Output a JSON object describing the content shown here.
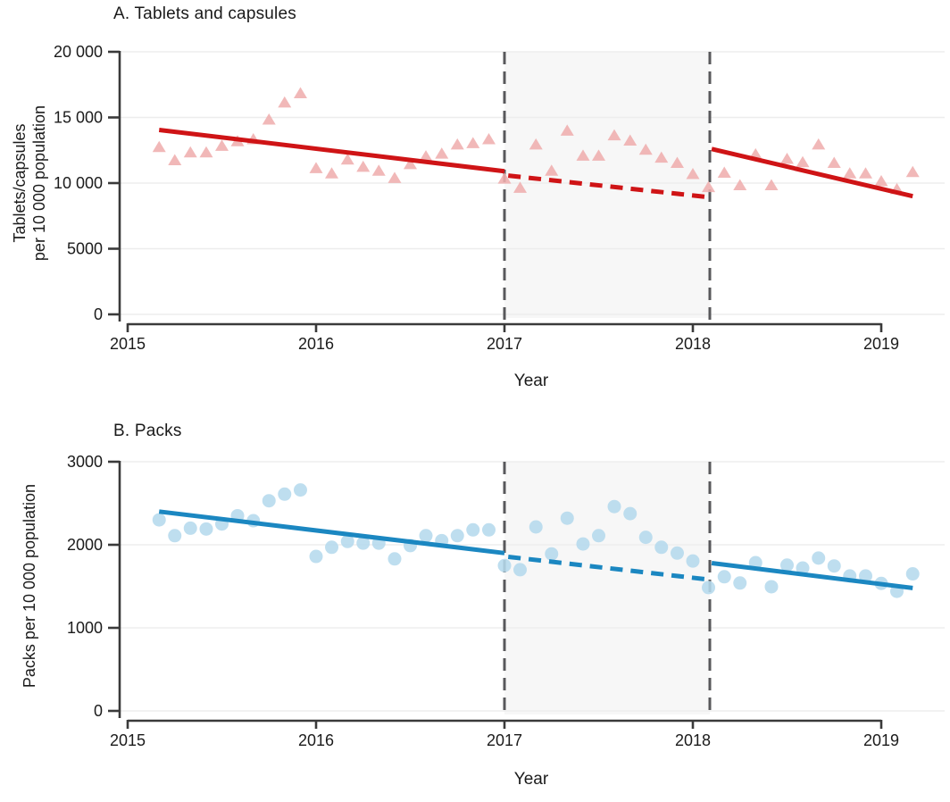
{
  "colors": {
    "red_line": "#cf1416",
    "pink_marker": "#efaeae",
    "blue_line": "#1b87c1",
    "light_blue_marker": "#b5d9ed",
    "interruption_band": "#f7f7f7",
    "dashed_guide": "#58585b",
    "gridline": "#ededed",
    "axis": "#3a3a3a",
    "text": "#1b1b1b"
  },
  "chart_data": [
    {
      "panel": "A",
      "type": "scatter",
      "title": "A. Tablets and capsules",
      "ylabel_lines": [
        "Tablets/capsules",
        "per 10 000 population"
      ],
      "xlabel": "Year",
      "ylim": [
        0,
        20000
      ],
      "yticks": [
        0,
        5000,
        10000,
        15000,
        20000
      ],
      "ytick_labels": [
        "0",
        "5000",
        "10 000",
        "15 000",
        "20 000"
      ],
      "xticks": [
        2015,
        2016,
        2017,
        2018,
        2019
      ],
      "xtick_labels": [
        "2015",
        "2016",
        "2017",
        "2018",
        "2019"
      ],
      "grid": true,
      "legend": "none",
      "marker": "triangle",
      "interruption": {
        "start": 2017.0,
        "end": 2018.09
      },
      "points": {
        "x": [
          2015.167,
          2015.25,
          2015.333,
          2015.417,
          2015.5,
          2015.583,
          2015.667,
          2015.75,
          2015.833,
          2015.917,
          2016.0,
          2016.083,
          2016.167,
          2016.25,
          2016.333,
          2016.417,
          2016.5,
          2016.583,
          2016.667,
          2016.75,
          2016.833,
          2016.917,
          2017.0,
          2017.083,
          2017.167,
          2017.25,
          2017.333,
          2017.417,
          2017.5,
          2017.583,
          2017.667,
          2017.75,
          2017.833,
          2017.917,
          2018.0,
          2018.083,
          2018.167,
          2018.25,
          2018.333,
          2018.417,
          2018.5,
          2018.583,
          2018.667,
          2018.75,
          2018.833,
          2018.917,
          2019.0,
          2019.083,
          2019.167
        ],
        "y": [
          12700,
          11700,
          12300,
          12300,
          12800,
          13150,
          13300,
          14800,
          16100,
          16800,
          11100,
          10700,
          11750,
          11200,
          10900,
          10350,
          11400,
          12000,
          12200,
          12900,
          13000,
          13300,
          10300,
          9600,
          12900,
          10900,
          13950,
          12050,
          12050,
          13600,
          13200,
          12500,
          11900,
          11500,
          10650,
          9650,
          10750,
          9800,
          12150,
          9800,
          11800,
          11550,
          12900,
          11500,
          10700,
          10700,
          10100,
          9500,
          10800
        ]
      },
      "trend_segments": [
        {
          "style": "solid",
          "x1": 2015.167,
          "y1": 14050,
          "x2": 2017.0,
          "y2": 10900
        },
        {
          "style": "dashed",
          "x1": 2017.02,
          "y1": 10570,
          "x2": 2018.07,
          "y2": 8950
        },
        {
          "style": "solid",
          "x1": 2018.1,
          "y1": 12600,
          "x2": 2019.167,
          "y2": 9000
        }
      ]
    },
    {
      "panel": "B",
      "type": "scatter",
      "title": "B. Packs",
      "ylabel_lines": [
        "Packs per 10 000 population"
      ],
      "xlabel": "Year",
      "ylim": [
        0,
        3000
      ],
      "yticks": [
        0,
        1000,
        2000,
        3000
      ],
      "ytick_labels": [
        "0",
        "1000",
        "2000",
        "3000"
      ],
      "xticks": [
        2015,
        2016,
        2017,
        2018,
        2019
      ],
      "xtick_labels": [
        "2015",
        "2016",
        "2017",
        "2018",
        "2019"
      ],
      "grid": true,
      "legend": "none",
      "marker": "circle",
      "interruption": {
        "start": 2017.0,
        "end": 2018.09
      },
      "points": {
        "x": [
          2015.167,
          2015.25,
          2015.333,
          2015.417,
          2015.5,
          2015.583,
          2015.667,
          2015.75,
          2015.833,
          2015.917,
          2016.0,
          2016.083,
          2016.167,
          2016.25,
          2016.333,
          2016.417,
          2016.5,
          2016.583,
          2016.667,
          2016.75,
          2016.833,
          2016.917,
          2017.0,
          2017.083,
          2017.167,
          2017.25,
          2017.333,
          2017.417,
          2017.5,
          2017.583,
          2017.667,
          2017.75,
          2017.833,
          2017.917,
          2018.0,
          2018.083,
          2018.167,
          2018.25,
          2018.333,
          2018.417,
          2018.5,
          2018.583,
          2018.667,
          2018.75,
          2018.833,
          2018.917,
          2019.0,
          2019.083,
          2019.167
        ],
        "y": [
          2300,
          2110,
          2200,
          2190,
          2250,
          2350,
          2290,
          2530,
          2610,
          2660,
          1860,
          1970,
          2040,
          2020,
          2020,
          1830,
          1990,
          2110,
          2050,
          2110,
          2180,
          2180,
          1750,
          1700,
          2215,
          1890,
          2320,
          2010,
          2110,
          2460,
          2375,
          2090,
          1970,
          1900,
          1805,
          1485,
          1615,
          1540,
          1785,
          1495,
          1755,
          1720,
          1840,
          1745,
          1625,
          1625,
          1535,
          1440,
          1650
        ]
      },
      "trend_segments": [
        {
          "style": "solid",
          "x1": 2015.167,
          "y1": 2400,
          "x2": 2017.0,
          "y2": 1900
        },
        {
          "style": "dashed",
          "x1": 2017.02,
          "y1": 1855,
          "x2": 2018.07,
          "y2": 1585
        },
        {
          "style": "solid",
          "x1": 2018.1,
          "y1": 1780,
          "x2": 2019.167,
          "y2": 1480
        }
      ]
    }
  ]
}
